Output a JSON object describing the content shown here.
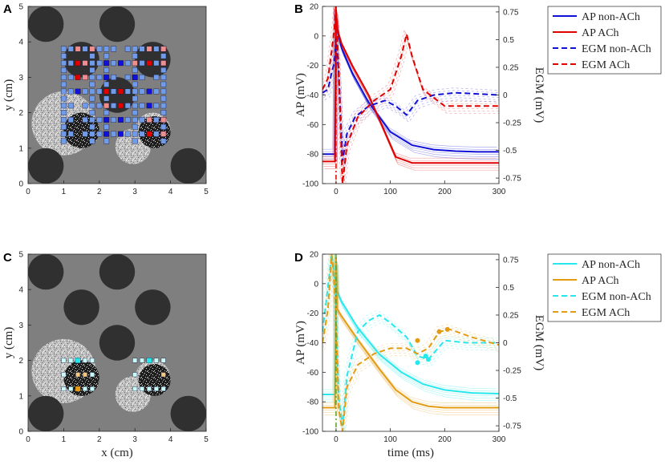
{
  "panel_letters": [
    "A",
    "B",
    "C",
    "D"
  ],
  "colors": {
    "tissue_gray": "#7f7f7f",
    "dark_disc": "#303030",
    "noise_light": "#c8c8c8",
    "noise_dark": "#1c1c1c",
    "blue_strong": "#1010d8",
    "blue_light": "#6f9be8",
    "red_strong": "#e00000",
    "red_light": "#f08d8d",
    "cyan_strong": "#26e8ec",
    "cyan_light": "#c9fbfb",
    "orange_strong": "#e39b12",
    "orange_light": "#f3c77d",
    "green_dashdot": "#5aa02c"
  },
  "chart_data": [
    {
      "panel": "A",
      "type": "map",
      "title": "",
      "xlabel": "",
      "ylabel": "y (cm)",
      "xlim": [
        0,
        5
      ],
      "ylim": [
        0,
        5
      ],
      "xticks": [
        "0",
        "1",
        "2",
        "3",
        "4",
        "5"
      ],
      "yticks": [
        "0",
        "1",
        "2",
        "3",
        "4",
        "5"
      ],
      "dark_circles_cm": [
        {
          "cx": 0.5,
          "cy": 4.5,
          "r": 0.5
        },
        {
          "cx": 2.5,
          "cy": 4.5,
          "r": 0.5
        },
        {
          "cx": 1.5,
          "cy": 3.5,
          "r": 0.5
        },
        {
          "cx": 3.5,
          "cy": 3.5,
          "r": 0.5
        },
        {
          "cx": 2.5,
          "cy": 2.5,
          "r": 0.5
        },
        {
          "cx": 0.5,
          "cy": 0.5,
          "r": 0.5
        },
        {
          "cx": 4.5,
          "cy": 0.5,
          "r": 0.5
        }
      ],
      "noisy_regions_cm": [
        {
          "cx": 1.0,
          "cy": 1.7,
          "r": 0.9,
          "core_r": 0.5,
          "core_cx": 1.5,
          "core_cy": 1.5
        },
        {
          "cx": 3.5,
          "cy": 1.5,
          "r": 0.5,
          "core_r": 0.45,
          "core_cx": 3.55,
          "core_cy": 1.45
        },
        {
          "cx": 2.95,
          "cy": 1.05,
          "r": 0.5,
          "core_r": 0,
          "core_cx": 0,
          "core_cy": 0
        }
      ],
      "electrodes": {
        "grid_x_cm": [
          1.0,
          1.2,
          1.4,
          1.6,
          1.8,
          2.0,
          2.2,
          2.4,
          2.6,
          2.8,
          3.0,
          3.2,
          3.4,
          3.6,
          3.8
        ],
        "grid_y_cm": [
          3.8,
          3.6,
          3.4,
          3.2,
          3.0,
          2.8,
          2.6,
          2.4,
          2.2,
          2.0,
          1.8,
          1.6,
          1.4,
          1.2
        ],
        "light_blue_cols": [
          1.0,
          2.0,
          3.0
        ],
        "light_blue_rows_extra": [],
        "blue_strong_cm": [
          [
            2.2,
            3.4
          ],
          [
            2.6,
            3.4
          ],
          [
            2.2,
            3.0
          ],
          [
            1.4,
            2.6
          ],
          [
            3.4,
            2.6
          ],
          [
            3.4,
            2.2
          ],
          [
            3.0,
            3.0
          ],
          [
            2.2,
            1.4
          ],
          [
            2.6,
            1.4
          ],
          [
            2.2,
            1.8
          ],
          [
            2.6,
            1.8
          ]
        ],
        "red_strong_cm": [
          [
            1.4,
            3.4
          ],
          [
            1.4,
            3.0
          ],
          [
            3.4,
            3.4
          ],
          [
            2.2,
            2.6
          ],
          [
            2.6,
            2.6
          ],
          [
            2.6,
            2.2
          ],
          [
            3.4,
            1.4
          ]
        ],
        "red_light_cm": [
          [
            1.4,
            3.8
          ],
          [
            1.6,
            3.4
          ],
          [
            1.6,
            3.0
          ],
          [
            1.8,
            3.8
          ],
          [
            3.4,
            3.8
          ],
          [
            3.8,
            3.8
          ],
          [
            3.8,
            3.4
          ],
          [
            3.0,
            3.4
          ],
          [
            2.2,
            2.2
          ],
          [
            3.8,
            1.8
          ],
          [
            3.8,
            1.4
          ],
          [
            3.4,
            1.8
          ]
        ]
      }
    },
    {
      "panel": "B",
      "type": "line",
      "title": "",
      "xlabel": "",
      "ylabel": "AP (mV)",
      "ylabel_right": "EGM (mV)",
      "xlim": [
        -25,
        300
      ],
      "ylim": [
        -100,
        20
      ],
      "ylim_right": [
        -0.8,
        0.8
      ],
      "xticks": [
        "0",
        "100",
        "200",
        "300"
      ],
      "yticks": [
        "20",
        "0",
        "-20",
        "-40",
        "-60",
        "-80",
        "-100"
      ],
      "yticks_right": [
        "0.75",
        "0.5",
        "0.25",
        "0",
        "-0.25",
        "-0.5",
        "-0.75"
      ],
      "legend": [
        "AP non-ACh",
        "AP ACh",
        "EGM non-ACh",
        "EGM ACh"
      ],
      "legend_placement": "outside-top-right",
      "series": [
        {
          "name": "AP non-ACh",
          "axis": "left",
          "style": "solid",
          "color": "blue_strong",
          "x": [
            -25,
            -2,
            0,
            2,
            10,
            30,
            60,
            100,
            140,
            180,
            220,
            260,
            300
          ],
          "y": [
            -80,
            -80,
            15,
            5,
            -8,
            -25,
            -45,
            -65,
            -74,
            -77,
            -78,
            -78.5,
            -78.5
          ]
        },
        {
          "name": "AP ACh",
          "axis": "left",
          "style": "solid",
          "color": "red_strong",
          "x": [
            -25,
            -2,
            0,
            2,
            10,
            30,
            60,
            90,
            110,
            140,
            200,
            300
          ],
          "y": [
            -85,
            -85,
            18,
            5,
            -5,
            -20,
            -40,
            -65,
            -82,
            -86,
            -86,
            -86
          ]
        },
        {
          "name": "EGM non-ACh",
          "axis": "right",
          "style": "dashed",
          "color": "blue_strong",
          "x": [
            -25,
            -15,
            -8,
            -3,
            0,
            5,
            12,
            20,
            35,
            60,
            90,
            110,
            130,
            150,
            180,
            220,
            300
          ],
          "y": [
            0.02,
            0.05,
            0.2,
            0.3,
            0.5,
            0.2,
            -0.6,
            -0.35,
            -0.2,
            -0.1,
            -0.05,
            -0.1,
            -0.18,
            -0.05,
            0.0,
            0.02,
            0.0
          ]
        },
        {
          "name": "EGM ACh",
          "axis": "right",
          "style": "dashed",
          "color": "red_strong",
          "x": [
            -25,
            -15,
            -8,
            -3,
            0,
            5,
            12,
            20,
            40,
            70,
            100,
            120,
            130,
            140,
            160,
            200,
            300
          ],
          "y": [
            0.05,
            0.15,
            0.4,
            0.6,
            0.8,
            0.2,
            -0.8,
            -0.45,
            -0.2,
            -0.05,
            0.05,
            0.35,
            0.55,
            0.35,
            0.05,
            -0.1,
            -0.1
          ]
        }
      ]
    },
    {
      "panel": "C",
      "type": "map",
      "title": "",
      "xlabel": "x (cm)",
      "ylabel": "y (cm)",
      "xlim": [
        0,
        5
      ],
      "ylim": [
        0,
        5
      ],
      "xticks": [
        "0",
        "1",
        "2",
        "3",
        "4",
        "5"
      ],
      "yticks": [
        "0",
        "1",
        "2",
        "3",
        "4",
        "5"
      ],
      "electrodes": {
        "cyan_light_cm": [
          [
            1.0,
            2.0
          ],
          [
            1.2,
            2.0
          ],
          [
            1.4,
            2.0
          ],
          [
            1.6,
            2.0
          ],
          [
            1.8,
            2.0
          ],
          [
            1.0,
            1.6
          ],
          [
            1.0,
            1.2
          ],
          [
            1.2,
            1.2
          ],
          [
            1.4,
            1.2
          ],
          [
            1.6,
            1.2
          ],
          [
            1.8,
            1.2
          ],
          [
            1.8,
            1.6
          ],
          [
            3.0,
            2.0
          ],
          [
            3.2,
            2.0
          ],
          [
            3.6,
            2.0
          ],
          [
            3.8,
            2.0
          ],
          [
            3.0,
            1.6
          ],
          [
            3.0,
            1.2
          ],
          [
            3.2,
            1.2
          ],
          [
            3.4,
            1.2
          ],
          [
            3.6,
            1.2
          ],
          [
            3.8,
            1.2
          ]
        ],
        "cyan_strong_cm": [
          [
            1.4,
            2.0
          ],
          [
            3.4,
            2.0
          ]
        ],
        "orange_light_cm": [
          [
            1.4,
            1.6
          ],
          [
            1.6,
            1.6
          ],
          [
            3.8,
            1.6
          ],
          [
            1.4,
            1.2
          ]
        ],
        "orange_strong_cm": [
          [
            1.4,
            1.2
          ]
        ]
      }
    },
    {
      "panel": "D",
      "type": "line",
      "title": "",
      "xlabel": "time (ms)",
      "ylabel": "AP (mV)",
      "ylabel_right": "EGM (mV)",
      "xlim": [
        -25,
        300
      ],
      "ylim": [
        -100,
        20
      ],
      "ylim_right": [
        -0.8,
        0.8
      ],
      "xticks": [
        "0",
        "100",
        "200",
        "300"
      ],
      "yticks": [
        "20",
        "0",
        "-20",
        "-40",
        "-60",
        "-80",
        "-100"
      ],
      "yticks_right": [
        "0.75",
        "0.5",
        "0.25",
        "0",
        "-0.25",
        "-0.5",
        "-0.75"
      ],
      "legend": [
        "AP non-ACh",
        "AP ACh",
        "EGM non-ACh",
        "EGM ACh"
      ],
      "legend_placement": "outside-top-right",
      "series": [
        {
          "name": "AP non-ACh",
          "axis": "left",
          "style": "solid",
          "color": "cyan_strong",
          "x": [
            -25,
            -2,
            0,
            2,
            10,
            40,
            80,
            120,
            160,
            200,
            250,
            300
          ],
          "y": [
            -75,
            -75,
            18,
            -5,
            -12,
            -30,
            -48,
            -60,
            -68,
            -72,
            -74,
            -74.5
          ]
        },
        {
          "name": "AP ACh",
          "axis": "left",
          "style": "solid",
          "color": "orange_strong",
          "x": [
            -25,
            -2,
            0,
            2,
            10,
            40,
            80,
            110,
            140,
            170,
            200,
            300
          ],
          "y": [
            -84,
            -84,
            18,
            -17,
            -22,
            -38,
            -58,
            -72,
            -80,
            -83,
            -84,
            -84
          ]
        },
        {
          "name": "EGM non-ACh",
          "axis": "right",
          "style": "dashed",
          "color": "cyan_strong",
          "x": [
            -25,
            -15,
            -8,
            -3,
            0,
            5,
            12,
            20,
            40,
            60,
            80,
            100,
            130,
            150,
            170,
            200,
            240,
            300
          ],
          "y": [
            0.1,
            0.5,
            0.8,
            0.6,
            0.3,
            -0.5,
            -0.75,
            -0.3,
            0.1,
            0.2,
            0.25,
            0.18,
            0.05,
            -0.12,
            -0.15,
            0.02,
            0.0,
            0.0
          ]
        },
        {
          "name": "EGM ACh",
          "axis": "right",
          "style": "dashed",
          "color": "orange_strong",
          "x": [
            -25,
            -15,
            -8,
            -3,
            0,
            5,
            12,
            20,
            40,
            70,
            100,
            130,
            150,
            170,
            190,
            210,
            250,
            300
          ],
          "y": [
            0.0,
            0.3,
            0.8,
            0.5,
            0.2,
            -0.6,
            -0.8,
            -0.4,
            -0.2,
            -0.1,
            -0.05,
            -0.05,
            -0.1,
            -0.05,
            0.1,
            0.12,
            0.05,
            -0.02
          ]
        }
      ],
      "markers": [
        {
          "color": "cyan_strong",
          "axis": "right",
          "points": [
            [
              150,
              -0.18
            ],
            [
              165,
              -0.12
            ],
            [
              170,
              -0.15
            ]
          ]
        },
        {
          "color": "orange_strong",
          "axis": "right",
          "points": [
            [
              150,
              0.02
            ],
            [
              190,
              0.1
            ],
            [
              205,
              0.12
            ]
          ]
        }
      ]
    }
  ]
}
